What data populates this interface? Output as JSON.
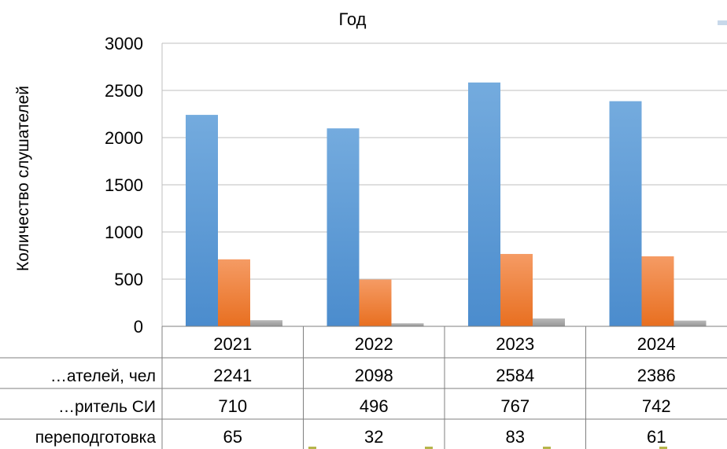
{
  "chart_data": {
    "type": "bar",
    "title": "Год",
    "ylabel": "Количество слушателей",
    "xlabel": "",
    "ylim": [
      0,
      3000
    ],
    "yticks": [
      0,
      500,
      1000,
      1500,
      2000,
      2500,
      3000
    ],
    "grid": true,
    "legend": "data table below chart",
    "categories": [
      "2021",
      "2022",
      "2023",
      "2024"
    ],
    "series": [
      {
        "name": "…ателей, чел",
        "values": [
          2241,
          2098,
          2584,
          2386
        ],
        "color": "#5b9bd5"
      },
      {
        "name": "…ритель СИ",
        "values": [
          710,
          496,
          767,
          742
        ],
        "color": "#ed7d31"
      },
      {
        "name": "переподготовка",
        "values": [
          65,
          32,
          83,
          61
        ],
        "color": "#a5a5a5"
      }
    ]
  }
}
